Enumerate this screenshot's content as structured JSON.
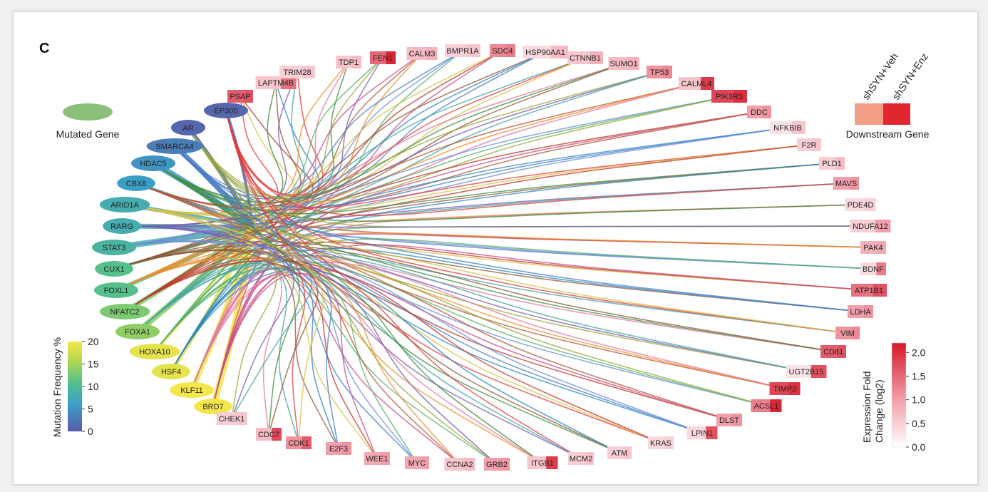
{
  "panel_letter": "C",
  "legend_mutated": {
    "label": "Mutated Gene",
    "color": "#8cc07a"
  },
  "legend_downstream": {
    "label": "Downstream Gene",
    "col1": "shSYN+Veh",
    "col2": "shSYN+Enz",
    "color1": "#f29f86",
    "color2": "#e0262f"
  },
  "mutation_colorbar": {
    "title": "Mutation Frequency %",
    "ticks": [
      "0",
      "5",
      "10",
      "15",
      "20"
    ],
    "min": 0,
    "max": 20
  },
  "expression_colorbar": {
    "title_line1": "Expression Fold",
    "title_line2": "Change (log2)",
    "ticks": [
      "0.0",
      "0.5",
      "1.0",
      "1.5",
      "2.0"
    ],
    "min": 0,
    "max": 2.2
  },
  "mutated_genes": [
    {
      "name": "EP300",
      "freq": 1
    },
    {
      "name": "AR",
      "freq": 1
    },
    {
      "name": "SMARCA4",
      "freq": 3
    },
    {
      "name": "HDAC5",
      "freq": 5
    },
    {
      "name": "CBX8",
      "freq": 6
    },
    {
      "name": "ARID1A",
      "freq": 8
    },
    {
      "name": "RARG",
      "freq": 8
    },
    {
      "name": "STAT3",
      "freq": 9
    },
    {
      "name": "CUX1",
      "freq": 11
    },
    {
      "name": "FOXL1",
      "freq": 11
    },
    {
      "name": "NFATC2",
      "freq": 13
    },
    {
      "name": "FOXA1",
      "freq": 14
    },
    {
      "name": "HOXA10",
      "freq": 19
    },
    {
      "name": "HSF4",
      "freq": 19
    },
    {
      "name": "KLF11",
      "freq": 20
    },
    {
      "name": "BRD7",
      "freq": 20
    }
  ],
  "downstream_genes": [
    {
      "name": "PSAP",
      "veh": 1.6,
      "enz": 1.7
    },
    {
      "name": "LAPTM4B",
      "veh": 0.6,
      "enz": 1.4
    },
    {
      "name": "TRIM28",
      "veh": 0.5,
      "enz": 0.6
    },
    {
      "name": "TDP1",
      "veh": 0.6,
      "enz": 0.7
    },
    {
      "name": "FEN1",
      "veh": 1.5,
      "enz": 2.1
    },
    {
      "name": "CALM3",
      "veh": 0.7,
      "enz": 0.8
    },
    {
      "name": "BMPR1A",
      "veh": 0.5,
      "enz": 0.6
    },
    {
      "name": "SDC4",
      "veh": 1.2,
      "enz": 1.3
    },
    {
      "name": "HSP90AA1",
      "veh": 0.4,
      "enz": 0.7
    },
    {
      "name": "CTNNB1",
      "veh": 0.6,
      "enz": 0.8
    },
    {
      "name": "SUMO1",
      "veh": 0.7,
      "enz": 0.8
    },
    {
      "name": "TP53",
      "veh": 1.1,
      "enz": 1.2
    },
    {
      "name": "CALML4",
      "veh": 0.6,
      "enz": 1.9
    },
    {
      "name": "PIK3R3",
      "veh": 1.8,
      "enz": 2.0
    },
    {
      "name": "DDC",
      "veh": 1.0,
      "enz": 1.1
    },
    {
      "name": "NFKBIB",
      "veh": 0.3,
      "enz": 0.6
    },
    {
      "name": "F2R",
      "veh": 0.5,
      "enz": 0.6
    },
    {
      "name": "PLD1",
      "veh": 0.5,
      "enz": 0.7
    },
    {
      "name": "MAVS",
      "veh": 1.0,
      "enz": 1.1
    },
    {
      "name": "PDE4D",
      "veh": 0.4,
      "enz": 0.5
    },
    {
      "name": "NDUFA12",
      "veh": 0.5,
      "enz": 1.0
    },
    {
      "name": "PAK4",
      "veh": 0.8,
      "enz": 0.9
    },
    {
      "name": "BDNF",
      "veh": 0.4,
      "enz": 1.3
    },
    {
      "name": "ATP1B1",
      "veh": 1.4,
      "enz": 1.7
    },
    {
      "name": "LDHA",
      "veh": 1.0,
      "enz": 1.1
    },
    {
      "name": "VIM",
      "veh": 1.1,
      "enz": 1.2
    },
    {
      "name": "CD81",
      "veh": 1.6,
      "enz": 1.7
    },
    {
      "name": "UGT2B15",
      "veh": 0.3,
      "enz": 1.7
    },
    {
      "name": "TIMP2",
      "veh": 1.8,
      "enz": 2.0
    },
    {
      "name": "ACSL1",
      "veh": 1.3,
      "enz": 2.1
    },
    {
      "name": "DLST",
      "veh": 1.0,
      "enz": 1.1
    },
    {
      "name": "LPIN1",
      "veh": 0.4,
      "enz": 1.7
    },
    {
      "name": "KRAS",
      "veh": 0.4,
      "enz": 0.5
    },
    {
      "name": "ATM",
      "veh": 0.5,
      "enz": 0.6
    },
    {
      "name": "MCM2",
      "veh": 0.5,
      "enz": 0.6
    },
    {
      "name": "ITGB1",
      "veh": 0.6,
      "enz": 1.9
    },
    {
      "name": "GRB2",
      "veh": 1.0,
      "enz": 1.1
    },
    {
      "name": "CCNA2",
      "veh": 0.6,
      "enz": 0.7
    },
    {
      "name": "MYC",
      "veh": 0.9,
      "enz": 1.0
    },
    {
      "name": "WEE1",
      "veh": 0.9,
      "enz": 1.0
    },
    {
      "name": "E2F3",
      "veh": 1.0,
      "enz": 1.1
    },
    {
      "name": "CDK1",
      "veh": 1.1,
      "enz": 1.6
    },
    {
      "name": "CDC7",
      "veh": 0.7,
      "enz": 1.8
    },
    {
      "name": "CHEK1",
      "veh": 0.5,
      "enz": 0.6
    }
  ]
}
